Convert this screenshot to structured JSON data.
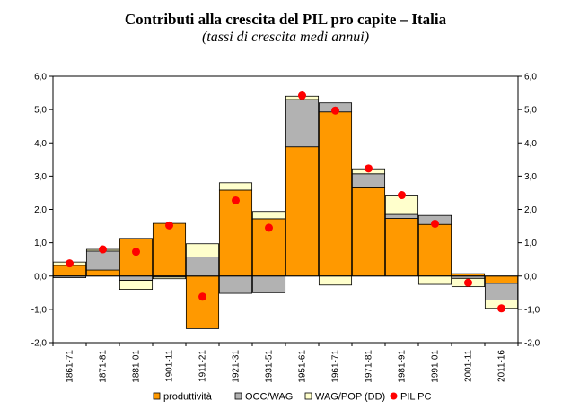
{
  "chart_data": {
    "type": "bar",
    "title": "Contributi alla crescita del PIL pro capite – Italia",
    "subtitle": "(tassi di crescita medi annui)",
    "categories": [
      "1861-71",
      "1871-81",
      "1881-01",
      "1901-11",
      "1911-21",
      "1921-31",
      "1931-51",
      "1951-61",
      "1961-71",
      "1971-81",
      "1981-91",
      "1991-01",
      "2001-11",
      "2011-16"
    ],
    "stacked": true,
    "ylim": [
      -2.0,
      6.0
    ],
    "yticks": [
      "6,0",
      "5,0",
      "4,0",
      "3,0",
      "2,0",
      "1,0",
      "0,0",
      "-1,0",
      "-2,0"
    ],
    "ytick_values": [
      6,
      5,
      4,
      3,
      2,
      1,
      0,
      -1,
      -2
    ],
    "legend_position": "bottom",
    "grid": false,
    "series": [
      {
        "name": "produttività",
        "kind": "bar",
        "color": "#FF9900",
        "values": [
          0.32,
          0.18,
          1.13,
          1.58,
          -1.58,
          2.58,
          1.72,
          3.88,
          4.93,
          2.65,
          1.73,
          1.55,
          0.07,
          -0.22
        ]
      },
      {
        "name": "OCC/WAG",
        "kind": "bar",
        "color": "#B2B2B2",
        "values": [
          -0.05,
          0.57,
          -0.13,
          -0.03,
          0.57,
          -0.52,
          -0.5,
          1.42,
          0.27,
          0.42,
          0.12,
          0.27,
          -0.07,
          -0.5
        ]
      },
      {
        "name": "WAG/POP (DD)",
        "kind": "bar",
        "color": "#FFFFCC",
        "values": [
          0.1,
          0.05,
          -0.27,
          -0.05,
          0.4,
          0.22,
          0.22,
          0.1,
          -0.27,
          0.15,
          0.58,
          -0.25,
          -0.25,
          -0.25
        ]
      },
      {
        "name": "PIL PC",
        "kind": "marker",
        "color": "#FF0000",
        "values": [
          0.38,
          0.8,
          0.73,
          1.52,
          -0.62,
          2.27,
          1.45,
          5.42,
          4.97,
          3.23,
          2.43,
          1.57,
          -0.2,
          -0.97
        ]
      }
    ]
  }
}
